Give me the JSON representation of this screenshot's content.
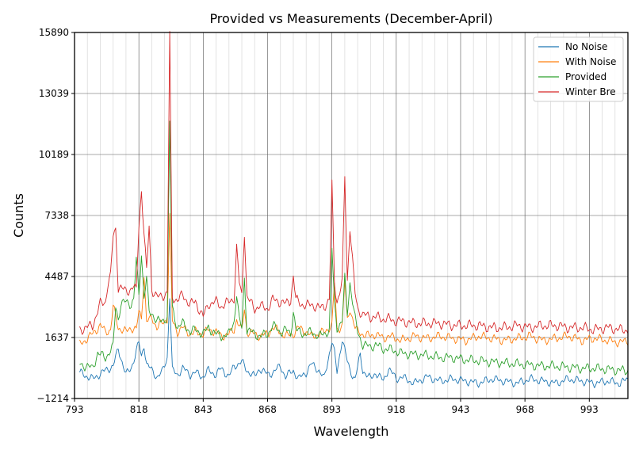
{
  "chart_data": {
    "type": "line",
    "title": "Provided vs Measurements (December-April)",
    "xlabel": "Wavelength",
    "ylabel": "Counts",
    "xlim": [
      793,
      1008
    ],
    "ylim": [
      -1214,
      15890
    ],
    "xticks": [
      793,
      818,
      843,
      868,
      893,
      918,
      943,
      968,
      993
    ],
    "yticks": [
      -1214,
      1637,
      4487,
      7338,
      10189,
      13039,
      15890
    ],
    "ytick_labels": [
      "−1214",
      "1637",
      "4487",
      "7338",
      "10189",
      "13039",
      "15890"
    ],
    "grid": true,
    "legend_position": "top-right",
    "series": [
      {
        "name": "No Noise",
        "color": "#1f77b4",
        "x": [
          795,
          800,
          805,
          808,
          810,
          813,
          815,
          818,
          819,
          820,
          821,
          823,
          825,
          827,
          829,
          830,
          831,
          833,
          835,
          838,
          840,
          843,
          845,
          848,
          850,
          853,
          855,
          858,
          860,
          863,
          865,
          868,
          870,
          873,
          875,
          878,
          880,
          883,
          885,
          888,
          890,
          893,
          894,
          895,
          897,
          899,
          900,
          902,
          904,
          905,
          908,
          910,
          913,
          915,
          918,
          920,
          925,
          930,
          935,
          940,
          945,
          950,
          955,
          960,
          965,
          970,
          975,
          980,
          985,
          990,
          995,
          1000,
          1005,
          1008
        ],
        "y": [
          0,
          -300,
          100,
          300,
          1100,
          -100,
          200,
          1400,
          700,
          1300,
          400,
          100,
          -200,
          0,
          700,
          3600,
          100,
          -100,
          200,
          -100,
          0,
          -200,
          100,
          -100,
          200,
          -200,
          300,
          500,
          100,
          -200,
          200,
          -100,
          0,
          300,
          -200,
          100,
          -300,
          0,
          400,
          100,
          -300,
          1500,
          900,
          0,
          1600,
          500,
          100,
          -300,
          800,
          100,
          -300,
          0,
          -400,
          200,
          -300,
          -200,
          -500,
          -200,
          -400,
          -300,
          -400,
          -500,
          -300,
          -400,
          -500,
          -300,
          -400,
          -500,
          -300,
          -400,
          -500,
          -400,
          -500,
          -300
        ]
      },
      {
        "name": "With Noise",
        "color": "#ff7f0e",
        "x": [
          795,
          800,
          803,
          805,
          807,
          808,
          810,
          813,
          815,
          817,
          818,
          819,
          820,
          821,
          822,
          823,
          825,
          827,
          829,
          830,
          831,
          833,
          835,
          838,
          840,
          843,
          845,
          848,
          850,
          853,
          855,
          856,
          858,
          859,
          860,
          863,
          865,
          868,
          870,
          873,
          875,
          878,
          880,
          883,
          885,
          888,
          890,
          893,
          894,
          895,
          897,
          898,
          899,
          900,
          902,
          903,
          905,
          908,
          910,
          913,
          915,
          918,
          920,
          925,
          930,
          935,
          940,
          945,
          950,
          955,
          960,
          965,
          970,
          975,
          980,
          985,
          990,
          995,
          1000,
          1005,
          1008
        ],
        "y": [
          1300,
          1800,
          2200,
          1900,
          2000,
          3100,
          2100,
          1900,
          2100,
          2000,
          2800,
          2600,
          4500,
          2400,
          2400,
          2600,
          2100,
          2300,
          2500,
          7300,
          2400,
          1900,
          2100,
          1800,
          1900,
          1800,
          2000,
          1900,
          1700,
          1800,
          2000,
          2500,
          1900,
          3000,
          1900,
          1800,
          1700,
          1800,
          2100,
          1900,
          1700,
          1800,
          2100,
          1900,
          1700,
          1800,
          1900,
          2200,
          4200,
          2000,
          2200,
          4300,
          2400,
          3000,
          2100,
          1900,
          1800,
          1700,
          1800,
          1600,
          1700,
          1600,
          1500,
          1700,
          1600,
          1700,
          1600,
          1500,
          1700,
          1600,
          1500,
          1600,
          1700,
          1500,
          1600,
          1700,
          1500,
          1600,
          1500,
          1400,
          1500
        ]
      },
      {
        "name": "Provided",
        "color": "#2ca02c",
        "x": [
          795,
          800,
          802,
          805,
          808,
          809,
          810,
          811,
          813,
          815,
          816,
          817,
          818,
          819,
          820,
          821,
          822,
          823,
          825,
          827,
          829,
          830,
          831,
          833,
          835,
          838,
          840,
          843,
          845,
          848,
          850,
          853,
          855,
          856,
          857,
          858,
          859,
          860,
          863,
          865,
          868,
          870,
          873,
          875,
          877,
          878,
          879,
          880,
          883,
          885,
          888,
          890,
          892,
          893,
          894,
          895,
          897,
          898,
          899,
          900,
          902,
          903,
          905,
          908,
          910,
          913,
          915,
          918,
          920,
          925,
          930,
          935,
          940,
          945,
          950,
          955,
          960,
          965,
          970,
          975,
          980,
          985,
          990,
          995,
          1000,
          1005,
          1008
        ],
        "y": [
          400,
          200,
          900,
          700,
          1200,
          3100,
          2500,
          3200,
          3300,
          3200,
          3400,
          5300,
          3600,
          5600,
          3500,
          4400,
          2800,
          2800,
          2400,
          2400,
          2600,
          11700,
          3000,
          2100,
          2300,
          1900,
          2000,
          1800,
          2100,
          1800,
          1700,
          1800,
          2400,
          3700,
          2400,
          2100,
          4400,
          2000,
          1800,
          1700,
          1800,
          2200,
          1900,
          2000,
          1800,
          2900,
          2000,
          1900,
          1800,
          1900,
          1700,
          1800,
          2000,
          5800,
          3200,
          2100,
          2400,
          4400,
          2800,
          4200,
          2500,
          1900,
          1300,
          1200,
          1300,
          1100,
          1100,
          1000,
          900,
          850,
          800,
          700,
          700,
          600,
          550,
          500,
          450,
          400,
          350,
          300,
          300,
          250,
          200,
          200,
          150,
          100,
          100
        ]
      },
      {
        "name": "Winter Bre",
        "color": "#d62728",
        "x": [
          795,
          800,
          803,
          805,
          806,
          807,
          808,
          809,
          810,
          813,
          815,
          816,
          817,
          818,
          819,
          820,
          821,
          822,
          823,
          825,
          827,
          829,
          830,
          831,
          833,
          835,
          838,
          840,
          843,
          845,
          848,
          850,
          853,
          855,
          856,
          857,
          858,
          859,
          860,
          863,
          865,
          868,
          870,
          873,
          875,
          877,
          878,
          879,
          880,
          883,
          885,
          888,
          890,
          892,
          893,
          894,
          895,
          897,
          898,
          899,
          900,
          902,
          903,
          905,
          908,
          910,
          913,
          915,
          918,
          920,
          925,
          930,
          935,
          940,
          945,
          950,
          955,
          960,
          965,
          970,
          975,
          980,
          985,
          990,
          995,
          1000,
          1005,
          1008
        ],
        "y": [
          2000,
          2200,
          3200,
          3300,
          4200,
          4500,
          6400,
          6700,
          4000,
          3800,
          3900,
          4000,
          3800,
          6900,
          8500,
          6500,
          4700,
          6900,
          3900,
          3500,
          3600,
          3700,
          15800,
          3500,
          3400,
          3600,
          3200,
          3300,
          2600,
          3200,
          3300,
          3100,
          3300,
          3500,
          5800,
          4200,
          3600,
          6600,
          3500,
          3000,
          3100,
          3000,
          3400,
          3300,
          3200,
          3400,
          4500,
          3400,
          3300,
          3100,
          3200,
          3000,
          3100,
          3400,
          8800,
          4200,
          3300,
          4200,
          9200,
          4300,
          6800,
          3700,
          3000,
          2700,
          2600,
          2600,
          2500,
          2500,
          2400,
          2400,
          2300,
          2300,
          2300,
          2200,
          2200,
          2200,
          2100,
          2100,
          2200,
          2100,
          2200,
          2200,
          2100,
          2100,
          2000,
          2100,
          2000,
          2000
        ]
      }
    ]
  }
}
